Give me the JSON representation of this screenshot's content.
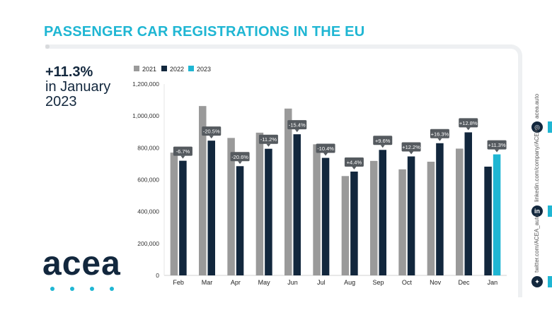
{
  "page": {
    "title": "PASSENGER CAR REGISTRATIONS IN THE EU",
    "headline_value": "+11.3%",
    "headline_line2": "in January",
    "headline_line3": "2023",
    "logo_text": "acea",
    "social": {
      "website": "acea.auto",
      "linkedin": "linkedin.com/company/ACEA/",
      "twitter": "twitter.com/ACEA_auto",
      "linkedin_icon": "in",
      "website_icon_name": "globe-icon",
      "twitter_icon_name": "twitter-icon"
    }
  },
  "chart_data": {
    "type": "bar",
    "title": "",
    "xlabel": "",
    "ylabel": "",
    "ylim": [
      0,
      1200000
    ],
    "yticks": [
      0,
      200000,
      400000,
      600000,
      800000,
      1000000,
      1200000
    ],
    "ytick_labels": [
      "0",
      "200,000",
      "400,000",
      "600,000",
      "800,000",
      "1,000,000",
      "1,200,000"
    ],
    "categories": [
      "Feb",
      "Mar",
      "Apr",
      "May",
      "Jun",
      "Jul",
      "Aug",
      "Sep",
      "Oct",
      "Nov",
      "Dec",
      "Jan"
    ],
    "series": [
      {
        "name": "2021",
        "color": "#9a9a9a",
        "values": [
          770000,
          1062000,
          862000,
          895000,
          1046000,
          822000,
          623000,
          718000,
          665000,
          713000,
          795000,
          null
        ]
      },
      {
        "name": "2022",
        "color": "#12273d",
        "values": [
          719000,
          845000,
          685000,
          794000,
          885000,
          737000,
          651000,
          787000,
          746000,
          829000,
          897000,
          682000
        ]
      },
      {
        "name": "2023",
        "color": "#1fb6d3",
        "values": [
          null,
          null,
          null,
          null,
          null,
          null,
          null,
          null,
          null,
          null,
          null,
          759000
        ]
      }
    ],
    "annotations": [
      "-6.7%",
      "-20.5%",
      "-20.6%",
      "-11.2%",
      "-15.4%",
      "-10.4%",
      "+4.4%",
      "+9.6%",
      "+12.2%",
      "+16.3%",
      "+12.8%",
      "+11.3%"
    ],
    "legend_position": "top-left"
  }
}
